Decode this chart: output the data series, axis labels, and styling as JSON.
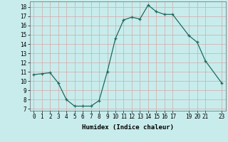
{
  "x": [
    0,
    1,
    2,
    3,
    4,
    5,
    6,
    7,
    8,
    9,
    10,
    11,
    12,
    13,
    14,
    15,
    16,
    17,
    19,
    20,
    21,
    23
  ],
  "y": [
    10.7,
    10.8,
    10.9,
    9.8,
    8.0,
    7.3,
    7.3,
    7.3,
    7.9,
    11.0,
    14.6,
    16.6,
    16.9,
    16.7,
    18.2,
    17.5,
    17.2,
    17.2,
    14.9,
    14.2,
    12.2,
    9.8
  ],
  "xlabel": "Humidex (Indice chaleur)",
  "xlim": [
    -0.5,
    23.5
  ],
  "ylim": [
    6.8,
    18.6
  ],
  "yticks": [
    7,
    8,
    9,
    10,
    11,
    12,
    13,
    14,
    15,
    16,
    17,
    18
  ],
  "xticks": [
    0,
    1,
    2,
    3,
    4,
    5,
    6,
    7,
    8,
    9,
    10,
    11,
    12,
    13,
    14,
    15,
    16,
    17,
    19,
    20,
    21,
    23
  ],
  "line_color": "#1a6b5f",
  "bg_color": "#c8ecec",
  "grid_color": "#d4a8a8",
  "label_fontsize": 6.5,
  "tick_fontsize": 5.5
}
